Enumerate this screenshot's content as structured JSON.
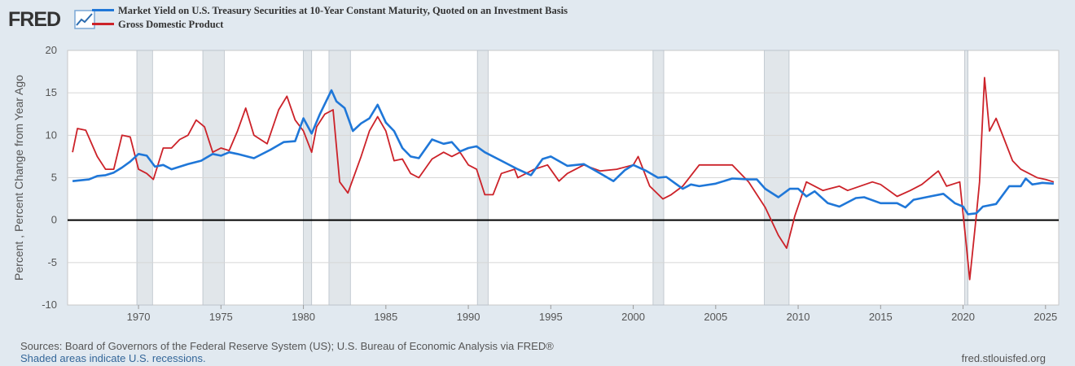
{
  "brand": {
    "logo_text": "FRED"
  },
  "chart_data": {
    "type": "line",
    "xlabel": "",
    "ylabel": "Percent , Percent Change from Year Ago",
    "xlim": [
      1965.7,
      2025.8
    ],
    "ylim": [
      -10,
      20
    ],
    "yticks": [
      -10,
      -5,
      0,
      5,
      10,
      15,
      20
    ],
    "xticks": [
      1970,
      1975,
      1980,
      1985,
      1990,
      1995,
      2000,
      2005,
      2010,
      2015,
      2020,
      2025
    ],
    "grid": true,
    "zero_line": true,
    "legend": "top-left",
    "recessions": [
      [
        1969.9,
        1970.85
      ],
      [
        1973.9,
        1975.2
      ],
      [
        1980.0,
        1980.5
      ],
      [
        1981.55,
        1982.85
      ],
      [
        1990.55,
        1991.2
      ],
      [
        2001.2,
        2001.85
      ],
      [
        2007.95,
        2009.45
      ],
      [
        2020.1,
        2020.3
      ]
    ],
    "series": [
      {
        "name": "Market Yield on U.S. Treasury Securities at 10-Year Constant Maturity, Quoted on an Investment Basis",
        "color": "#1f77d8",
        "points": [
          [
            1966.0,
            4.6
          ],
          [
            1967.0,
            4.8
          ],
          [
            1967.5,
            5.2
          ],
          [
            1968.0,
            5.3
          ],
          [
            1968.5,
            5.6
          ],
          [
            1969.0,
            6.2
          ],
          [
            1969.5,
            6.9
          ],
          [
            1970.0,
            7.8
          ],
          [
            1970.5,
            7.6
          ],
          [
            1971.0,
            6.3
          ],
          [
            1971.5,
            6.5
          ],
          [
            1972.0,
            6.0
          ],
          [
            1973.0,
            6.6
          ],
          [
            1973.8,
            7.0
          ],
          [
            1974.5,
            7.8
          ],
          [
            1975.0,
            7.6
          ],
          [
            1975.5,
            8.0
          ],
          [
            1976.0,
            7.8
          ],
          [
            1977.0,
            7.3
          ],
          [
            1978.0,
            8.3
          ],
          [
            1978.8,
            9.2
          ],
          [
            1979.5,
            9.3
          ],
          [
            1980.0,
            12.0
          ],
          [
            1980.5,
            10.2
          ],
          [
            1981.0,
            12.5
          ],
          [
            1981.7,
            15.3
          ],
          [
            1982.0,
            14.0
          ],
          [
            1982.5,
            13.2
          ],
          [
            1983.0,
            10.5
          ],
          [
            1983.5,
            11.4
          ],
          [
            1984.0,
            12.0
          ],
          [
            1984.5,
            13.6
          ],
          [
            1985.0,
            11.5
          ],
          [
            1985.5,
            10.5
          ],
          [
            1986.0,
            8.5
          ],
          [
            1986.5,
            7.5
          ],
          [
            1987.0,
            7.3
          ],
          [
            1987.8,
            9.5
          ],
          [
            1988.5,
            9.0
          ],
          [
            1989.0,
            9.2
          ],
          [
            1989.5,
            8.1
          ],
          [
            1990.0,
            8.5
          ],
          [
            1990.5,
            8.7
          ],
          [
            1991.0,
            8.0
          ],
          [
            1992.0,
            7.0
          ],
          [
            1993.0,
            6.0
          ],
          [
            1993.8,
            5.3
          ],
          [
            1994.5,
            7.2
          ],
          [
            1995.0,
            7.5
          ],
          [
            1996.0,
            6.4
          ],
          [
            1997.0,
            6.6
          ],
          [
            1998.0,
            5.5
          ],
          [
            1998.8,
            4.6
          ],
          [
            1999.5,
            5.9
          ],
          [
            2000.0,
            6.5
          ],
          [
            2000.8,
            5.8
          ],
          [
            2001.5,
            5.0
          ],
          [
            2002.0,
            5.1
          ],
          [
            2002.5,
            4.4
          ],
          [
            2003.0,
            3.7
          ],
          [
            2003.5,
            4.2
          ],
          [
            2004.0,
            4.0
          ],
          [
            2005.0,
            4.3
          ],
          [
            2006.0,
            4.9
          ],
          [
            2007.0,
            4.8
          ],
          [
            2007.5,
            4.8
          ],
          [
            2008.0,
            3.7
          ],
          [
            2008.8,
            2.7
          ],
          [
            2009.5,
            3.7
          ],
          [
            2010.0,
            3.7
          ],
          [
            2010.5,
            2.8
          ],
          [
            2011.0,
            3.4
          ],
          [
            2011.8,
            2.0
          ],
          [
            2012.5,
            1.6
          ],
          [
            2013.5,
            2.6
          ],
          [
            2014.0,
            2.7
          ],
          [
            2015.0,
            2.0
          ],
          [
            2016.0,
            2.0
          ],
          [
            2016.5,
            1.5
          ],
          [
            2017.0,
            2.4
          ],
          [
            2018.0,
            2.8
          ],
          [
            2018.8,
            3.1
          ],
          [
            2019.5,
            2.0
          ],
          [
            2020.0,
            1.6
          ],
          [
            2020.3,
            0.7
          ],
          [
            2020.8,
            0.8
          ],
          [
            2021.2,
            1.6
          ],
          [
            2022.0,
            1.9
          ],
          [
            2022.8,
            4.0
          ],
          [
            2023.5,
            4.0
          ],
          [
            2023.8,
            4.9
          ],
          [
            2024.2,
            4.2
          ],
          [
            2024.8,
            4.4
          ],
          [
            2025.5,
            4.3
          ]
        ]
      },
      {
        "name": "Gross Domestic Product",
        "color": "#cc2229",
        "points": [
          [
            1966.0,
            8.0
          ],
          [
            1966.3,
            10.8
          ],
          [
            1966.8,
            10.6
          ],
          [
            1967.5,
            7.5
          ],
          [
            1968.0,
            6.0
          ],
          [
            1968.5,
            6.0
          ],
          [
            1969.0,
            10.0
          ],
          [
            1969.5,
            9.8
          ],
          [
            1970.0,
            6.0
          ],
          [
            1970.5,
            5.5
          ],
          [
            1970.9,
            4.8
          ],
          [
            1971.5,
            8.5
          ],
          [
            1972.0,
            8.5
          ],
          [
            1972.5,
            9.5
          ],
          [
            1973.0,
            10.0
          ],
          [
            1973.5,
            11.8
          ],
          [
            1974.0,
            11.0
          ],
          [
            1974.5,
            8.0
          ],
          [
            1975.0,
            8.5
          ],
          [
            1975.5,
            8.2
          ],
          [
            1976.0,
            10.5
          ],
          [
            1976.5,
            13.2
          ],
          [
            1977.0,
            10.0
          ],
          [
            1977.8,
            9.0
          ],
          [
            1978.5,
            13.0
          ],
          [
            1979.0,
            14.6
          ],
          [
            1979.5,
            11.8
          ],
          [
            1980.0,
            10.5
          ],
          [
            1980.5,
            8.0
          ],
          [
            1980.8,
            11.0
          ],
          [
            1981.3,
            12.5
          ],
          [
            1981.8,
            13.0
          ],
          [
            1982.2,
            4.5
          ],
          [
            1982.7,
            3.2
          ],
          [
            1983.5,
            7.5
          ],
          [
            1984.0,
            10.5
          ],
          [
            1984.5,
            12.2
          ],
          [
            1985.0,
            10.5
          ],
          [
            1985.5,
            7.0
          ],
          [
            1986.0,
            7.2
          ],
          [
            1986.5,
            5.5
          ],
          [
            1987.0,
            5.0
          ],
          [
            1987.8,
            7.2
          ],
          [
            1988.5,
            8.0
          ],
          [
            1989.0,
            7.5
          ],
          [
            1989.5,
            8.0
          ],
          [
            1990.0,
            6.5
          ],
          [
            1990.5,
            6.0
          ],
          [
            1991.0,
            3.0
          ],
          [
            1991.5,
            3.0
          ],
          [
            1992.0,
            5.5
          ],
          [
            1992.8,
            6.0
          ],
          [
            1993.0,
            5.0
          ],
          [
            1994.0,
            6.0
          ],
          [
            1994.8,
            6.5
          ],
          [
            1995.5,
            4.6
          ],
          [
            1996.0,
            5.5
          ],
          [
            1997.0,
            6.5
          ],
          [
            1998.0,
            5.8
          ],
          [
            1999.0,
            6.0
          ],
          [
            2000.0,
            6.5
          ],
          [
            2000.3,
            7.5
          ],
          [
            2001.0,
            4.0
          ],
          [
            2001.8,
            2.5
          ],
          [
            2002.3,
            3.0
          ],
          [
            2003.0,
            4.0
          ],
          [
            2004.0,
            6.5
          ],
          [
            2005.0,
            6.5
          ],
          [
            2006.0,
            6.5
          ],
          [
            2007.0,
            4.5
          ],
          [
            2008.0,
            1.5
          ],
          [
            2008.8,
            -1.8
          ],
          [
            2009.3,
            -3.3
          ],
          [
            2009.8,
            0.5
          ],
          [
            2010.5,
            4.5
          ],
          [
            2011.5,
            3.5
          ],
          [
            2012.5,
            4.0
          ],
          [
            2013.0,
            3.5
          ],
          [
            2014.5,
            4.5
          ],
          [
            2015.0,
            4.2
          ],
          [
            2016.0,
            2.8
          ],
          [
            2016.8,
            3.5
          ],
          [
            2017.5,
            4.2
          ],
          [
            2018.5,
            5.8
          ],
          [
            2019.0,
            4.0
          ],
          [
            2019.8,
            4.5
          ],
          [
            2020.2,
            -3.0
          ],
          [
            2020.4,
            -7.0
          ],
          [
            2020.8,
            0.5
          ],
          [
            2021.0,
            4.5
          ],
          [
            2021.3,
            16.8
          ],
          [
            2021.6,
            10.5
          ],
          [
            2022.0,
            12.0
          ],
          [
            2022.5,
            9.5
          ],
          [
            2023.0,
            7.0
          ],
          [
            2023.5,
            6.0
          ],
          [
            2024.0,
            5.5
          ],
          [
            2024.5,
            5.0
          ],
          [
            2025.0,
            4.8
          ],
          [
            2025.5,
            4.5
          ]
        ]
      }
    ]
  },
  "footer": {
    "sources": "Sources: Board of Governors of the Federal Reserve System (US); U.S. Bureau of Economic Analysis via FRED®",
    "recession_note": "Shaded areas indicate U.S. recessions.",
    "credit": "fred.stlouisfed.org"
  },
  "colors": {
    "background": "#e1e9f0",
    "plot_background": "#ffffff",
    "grid": "#d6d6d6",
    "recession_fill": "#e1e6ea",
    "axis_text": "#555555"
  }
}
